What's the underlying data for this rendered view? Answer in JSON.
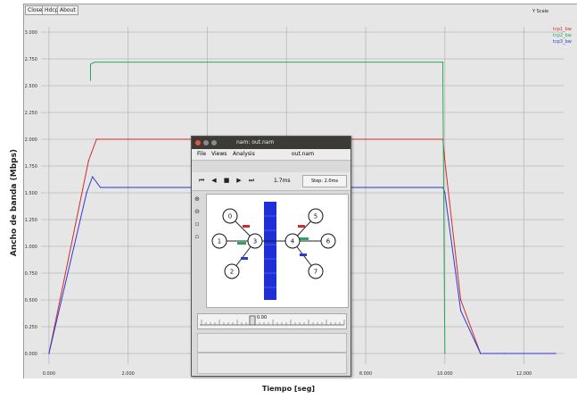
{
  "graph": {
    "toolbar": [
      "Close",
      "Hdcp",
      "About"
    ],
    "toggle": "Y Scale",
    "y_axis_label": "Ancho de banda (Mbps)",
    "x_axis_label": "Tiempo [seg]",
    "y_ticks": [
      "0.000",
      "0.250",
      "0.500",
      "0.750",
      "1.000",
      "1.250",
      "1.500",
      "1.750",
      "2.000",
      "2.250",
      "2.500",
      "2.750",
      "3.000"
    ],
    "x_ticks": [
      "0.000",
      "2.000",
      "4.000",
      "6.000",
      "8.000",
      "10.000",
      "12.000"
    ],
    "legend": [
      "tcp1_bw",
      "tcp2_bw",
      "tcp3_bw"
    ]
  },
  "chart_data": {
    "type": "line",
    "xlabel": "Tiempo [seg]",
    "ylabel": "Ancho de banda (Mbps)",
    "xlim": [
      -0.2,
      13.0
    ],
    "ylim": [
      -0.1,
      3.05
    ],
    "grid": true,
    "legend": "top-right",
    "series": [
      {
        "name": "tcp1_bw",
        "color": "#d42a2a",
        "x": [
          0.0,
          1.0,
          1.2,
          2.0,
          4.0,
          6.0,
          8.0,
          9.95,
          10.0,
          10.4,
          10.9,
          11.5
        ],
        "y": [
          0.0,
          1.8,
          2.0,
          2.0,
          2.0,
          2.0,
          2.0,
          2.0,
          1.8,
          0.5,
          0.0,
          0.0
        ]
      },
      {
        "name": "tcp2_bw",
        "color": "#2a3bd4",
        "x": [
          0.0,
          0.95,
          1.1,
          1.3,
          2.0,
          4.0,
          6.0,
          8.0,
          9.95,
          10.0,
          10.4,
          10.9,
          11.5,
          12.8
        ],
        "y": [
          0.0,
          1.5,
          1.65,
          1.55,
          1.55,
          1.55,
          1.55,
          1.55,
          1.55,
          1.5,
          0.4,
          0.0,
          0.0,
          0.0
        ]
      },
      {
        "name": "tcp3_bw",
        "color": "#2aa85a",
        "x": [
          1.05,
          1.05,
          1.15,
          9.95,
          9.95,
          10.0
        ],
        "y": [
          2.55,
          2.7,
          2.72,
          2.72,
          2.55,
          0.0
        ]
      }
    ]
  },
  "dialog": {
    "title": "nam: out.nam",
    "menus": [
      "File",
      "Views",
      "Analysis"
    ],
    "file_label": "out.nam",
    "time_label": "1.7ms",
    "step_label": "Step: 2.0ms",
    "controls": [
      "rewind",
      "back",
      "stop",
      "play",
      "fast-forward"
    ],
    "slider_label": "0.00",
    "nodes": [
      "0",
      "1",
      "2",
      "3",
      "4",
      "5",
      "6",
      "7"
    ]
  }
}
